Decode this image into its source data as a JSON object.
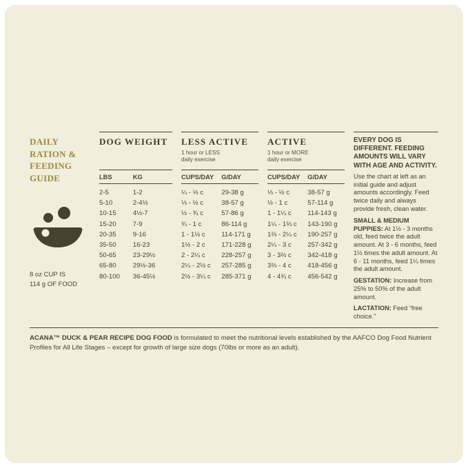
{
  "colors": {
    "background": "#f1eedd",
    "ink": "#46422f",
    "accent_gold": "#9c8a3a"
  },
  "left": {
    "title": "Daily Ration & Feeding Guide",
    "cup_note_line1": "8 oz CUP IS",
    "cup_note_line2": "114 g OF FOOD"
  },
  "table": {
    "col_weight": {
      "header": "DOG WEIGHT",
      "sub1": "LBS",
      "sub2": "KG"
    },
    "col_less_active": {
      "header": "LESS ACTIVE",
      "note1": "1 hour or LESS",
      "note2": "daily exercise",
      "sub1": "CUPS/DAY",
      "sub2": "G/DAY"
    },
    "col_active": {
      "header": "ACTIVE",
      "note1": "1 hour or MORE",
      "note2": "daily exercise",
      "sub1": "CUPS/DAY",
      "sub2": "G/DAY"
    },
    "rows": [
      {
        "lbs": "2-5",
        "kg": "1-2",
        "la_cups": "¼ - ⅓ c",
        "la_g": "29-38 g",
        "a_cups": "⅓ - ½ c",
        "a_g": "38-57 g"
      },
      {
        "lbs": "5-10",
        "kg": "2-4½",
        "la_cups": "⅓ - ½ c",
        "la_g": "38-57 g",
        "a_cups": "½ - 1 c",
        "a_g": "57-114 g"
      },
      {
        "lbs": "10-15",
        "kg": "4½-7",
        "la_cups": "½ - ¾ c",
        "la_g": "57-86 g",
        "a_cups": "1 - 1¼ c",
        "a_g": "114-143 g"
      },
      {
        "lbs": "15-20",
        "kg": "7-9",
        "la_cups": "¾ - 1 c",
        "la_g": "86-114 g",
        "a_cups": "1¼ - 1⅔ c",
        "a_g": "143-190 g"
      },
      {
        "lbs": "20-35",
        "kg": "9-16",
        "la_cups": "1 - 1½ c",
        "la_g": "114-171 g",
        "a_cups": "1⅔ - 2¼ c",
        "a_g": "190-257 g"
      },
      {
        "lbs": "35-50",
        "kg": "16-23",
        "la_cups": "1½ - 2 c",
        "la_g": "171-228 g",
        "a_cups": "2¼ - 3 c",
        "a_g": "257-342 g"
      },
      {
        "lbs": "50-65",
        "kg": "23-29½",
        "la_cups": "2 - 2¼ c",
        "la_g": "228-257 g",
        "a_cups": "3 - 3⅔ c",
        "a_g": "342-418 g"
      },
      {
        "lbs": "65-80",
        "kg": "29½-36",
        "la_cups": "2¼ - 2½ c",
        "la_g": "257-285 g",
        "a_cups": "3⅔ - 4 c",
        "a_g": "418-456 g"
      },
      {
        "lbs": "80-100",
        "kg": "36-45½",
        "la_cups": "2½ - 3¼ c",
        "la_g": "285-371 g",
        "a_cups": "4 - 4¾ c",
        "a_g": "456-542 g"
      }
    ]
  },
  "right": {
    "heading": "EVERY DOG IS DIFFERENT. FEEDING AMOUNTS WILL VARY WITH AGE AND ACTIVITY.",
    "intro": "Use the chart at left as an initial guide and adjust amounts accordingly. Feed twice daily and always provide fresh, clean water.",
    "puppies_label": "SMALL & MEDIUM PUPPIES:",
    "puppies_text": " At 1½ - 3 months old, feed twice the adult amount. At 3 - 6 months, feed 1½ times the adult amount. At 6 - 11 months, feed 1¼ times the adult amount.",
    "gestation_label": "GESTATION:",
    "gestation_text": " Increase from 25% to 50% of the adult amount.",
    "lactation_label": "LACTATION:",
    "lactation_text": " Feed “free choice.”"
  },
  "footnote": {
    "lead": "ACANA™ DUCK & PEAR RECIPE DOG FOOD",
    "text": " is formulated to meet the nutritional levels established by the AAFCO Dog Food Nutrient Profiles for All Life Stages – except for growth of large size dogs (70lbs or more as an adult)."
  }
}
